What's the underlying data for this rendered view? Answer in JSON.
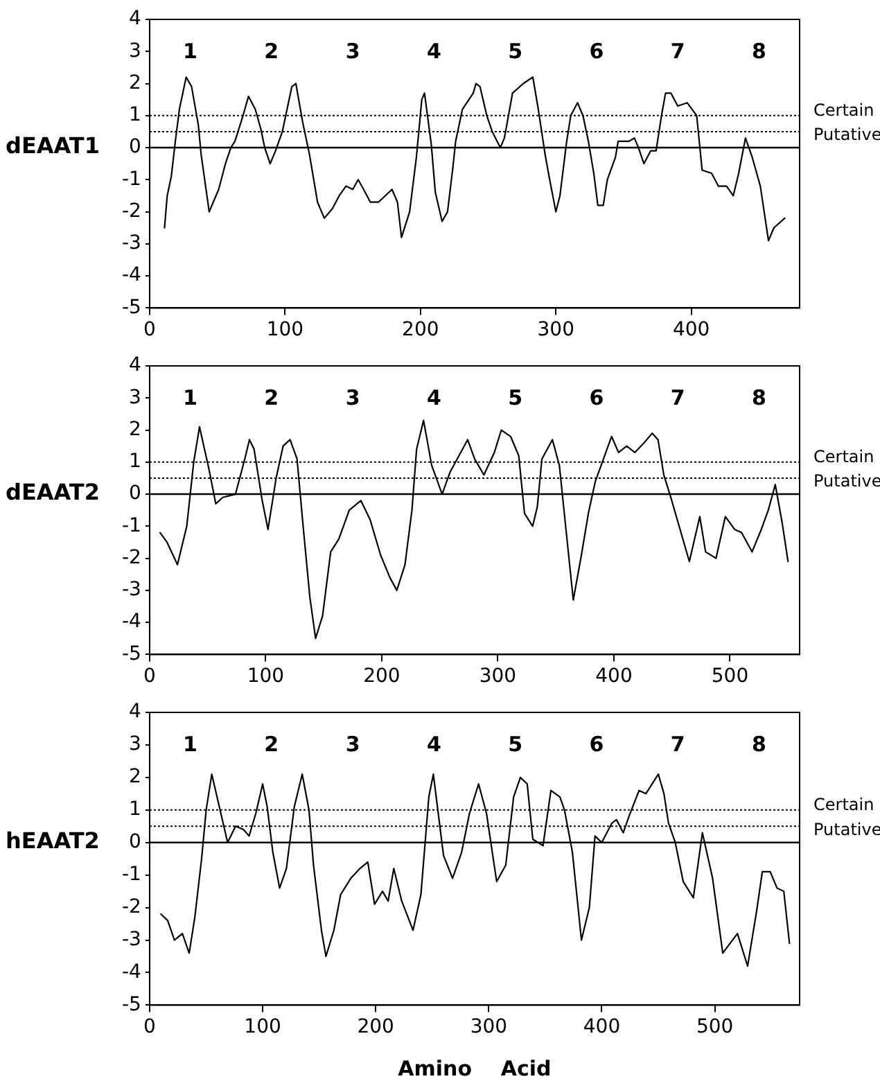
{
  "chart_data": [
    {
      "type": "line",
      "ylabel": "dEAAT1",
      "xlim": [
        0,
        480
      ],
      "xticks": [
        0,
        100,
        200,
        300,
        400
      ],
      "ylim": [
        -5,
        4
      ],
      "yticks": [
        -5,
        -4,
        -3,
        -2,
        -1,
        0,
        1,
        2,
        3,
        4
      ],
      "grid": false,
      "legend": false,
      "marker": "none",
      "line_style": "solid",
      "ref_lines": [
        {
          "axis": "y",
          "value": 1,
          "label": "Certain",
          "line_style": "dotted"
        },
        {
          "axis": "y",
          "value": 0.5,
          "label": "Putative",
          "line_style": "dotted"
        },
        {
          "axis": "y",
          "value": 0,
          "label": null,
          "line_style": "solid"
        }
      ],
      "annotations": [
        "1",
        "2",
        "3",
        "4",
        "5",
        "6",
        "7",
        "8"
      ],
      "series": [
        {
          "color": "#000000",
          "x": [
            11,
            13,
            16,
            19,
            22,
            27,
            31,
            36,
            38,
            44,
            47,
            51,
            56,
            60,
            63,
            69,
            73,
            78,
            82,
            85,
            89,
            93,
            98,
            101,
            105,
            108,
            113,
            118,
            124,
            129,
            135,
            140,
            145,
            150,
            154,
            158,
            163,
            169,
            174,
            179,
            183,
            186,
            192,
            197,
            201,
            203,
            208,
            211,
            216,
            220,
            224,
            226,
            231,
            239,
            241,
            244,
            249,
            253,
            259,
            262,
            268,
            276,
            283,
            287,
            292,
            295,
            300,
            303,
            308,
            311,
            316,
            320,
            324,
            328,
            331,
            335,
            338,
            344,
            346,
            351,
            354,
            358,
            361,
            365,
            370,
            374,
            378,
            381,
            385,
            390,
            397,
            404,
            408,
            415,
            420,
            426,
            431,
            435,
            440,
            445,
            451,
            457,
            461,
            469
          ],
          "values": [
            -2.5,
            -1.5,
            -0.9,
            0.2,
            1.2,
            2.2,
            1.9,
            0.7,
            -0.2,
            -2.0,
            -1.7,
            -1.3,
            -0.5,
            0.0,
            0.2,
            1.0,
            1.6,
            1.2,
            0.6,
            0.0,
            -0.5,
            -0.1,
            0.5,
            1.1,
            1.9,
            2.0,
            0.8,
            -0.2,
            -1.7,
            -2.2,
            -1.9,
            -1.5,
            -1.2,
            -1.3,
            -1.0,
            -1.3,
            -1.7,
            -1.7,
            -1.5,
            -1.3,
            -1.7,
            -2.8,
            -2.0,
            -0.3,
            1.5,
            1.7,
            0.1,
            -1.4,
            -2.3,
            -2.0,
            -0.6,
            0.2,
            1.2,
            1.7,
            2.0,
            1.9,
            1.0,
            0.5,
            0.0,
            0.3,
            1.7,
            2.0,
            2.2,
            1.2,
            -0.2,
            -0.9,
            -2.0,
            -1.5,
            0.2,
            1.0,
            1.4,
            1.0,
            0.2,
            -0.8,
            -1.8,
            -1.8,
            -1.0,
            -0.3,
            0.2,
            0.2,
            0.2,
            0.3,
            0.0,
            -0.5,
            -0.1,
            -0.1,
            1.0,
            1.7,
            1.7,
            1.3,
            1.4,
            1.0,
            -0.7,
            -0.8,
            -1.2,
            -1.2,
            -1.5,
            -0.8,
            0.3,
            -0.3,
            -1.2,
            -2.9,
            -2.5,
            -2.2
          ]
        }
      ]
    },
    {
      "type": "line",
      "ylabel": "dEAAT2",
      "xlim": [
        0,
        560
      ],
      "xticks": [
        0,
        100,
        200,
        300,
        400,
        500
      ],
      "ylim": [
        -5,
        4
      ],
      "yticks": [
        -5,
        -4,
        -3,
        -2,
        -1,
        0,
        1,
        2,
        3,
        4
      ],
      "grid": false,
      "legend": false,
      "marker": "none",
      "line_style": "solid",
      "ref_lines": [
        {
          "axis": "y",
          "value": 1,
          "label": "Certain",
          "line_style": "dotted"
        },
        {
          "axis": "y",
          "value": 0.5,
          "label": "Putative",
          "line_style": "dotted"
        },
        {
          "axis": "y",
          "value": 0,
          "label": null,
          "line_style": "solid"
        }
      ],
      "annotations": [
        "1",
        "2",
        "3",
        "4",
        "5",
        "6",
        "7",
        "8"
      ],
      "series": [
        {
          "color": "#000000",
          "x": [
            9,
            15,
            24,
            32,
            38,
            43,
            51,
            57,
            63,
            74,
            82,
            86,
            90,
            97,
            102,
            109,
            115,
            121,
            127,
            132,
            138,
            143,
            149,
            156,
            163,
            172,
            182,
            190,
            199,
            207,
            213,
            220,
            226,
            230,
            236,
            243,
            252,
            259,
            268,
            274,
            280,
            288,
            297,
            303,
            311,
            318,
            323,
            330,
            334,
            338,
            347,
            353,
            359,
            365,
            372,
            378,
            384,
            390,
            398,
            404,
            411,
            418,
            426,
            433,
            438,
            443,
            449,
            457,
            465,
            474,
            479,
            488,
            496,
            504,
            510,
            519,
            527,
            533,
            539,
            545,
            550
          ],
          "values": [
            -1.2,
            -1.5,
            -2.2,
            -1.0,
            1.0,
            2.1,
            0.8,
            -0.3,
            -0.1,
            0.0,
            1.1,
            1.7,
            1.4,
            -0.2,
            -1.1,
            0.5,
            1.5,
            1.7,
            1.1,
            -0.9,
            -3.2,
            -4.5,
            -3.8,
            -1.8,
            -1.4,
            -0.5,
            -0.2,
            -0.8,
            -1.9,
            -2.6,
            -3.0,
            -2.2,
            -0.5,
            1.4,
            2.3,
            0.9,
            0.0,
            0.7,
            1.3,
            1.7,
            1.1,
            0.6,
            1.3,
            2.0,
            1.8,
            1.2,
            -0.6,
            -1.0,
            -0.4,
            1.1,
            1.7,
            0.9,
            -1.2,
            -3.3,
            -1.9,
            -0.6,
            0.4,
            1.0,
            1.8,
            1.3,
            1.5,
            1.3,
            1.6,
            1.9,
            1.7,
            0.6,
            -0.1,
            -1.1,
            -2.1,
            -0.7,
            -1.8,
            -2.0,
            -0.7,
            -1.1,
            -1.2,
            -1.8,
            -1.1,
            -0.5,
            0.3,
            -0.9,
            -2.1
          ]
        }
      ]
    },
    {
      "type": "line",
      "ylabel": "hEAAT2",
      "xlabel": "Amino    Acid",
      "xlim": [
        0,
        575
      ],
      "xticks": [
        0,
        100,
        200,
        300,
        400,
        500
      ],
      "ylim": [
        -5,
        4
      ],
      "yticks": [
        -5,
        -4,
        -3,
        -2,
        -1,
        0,
        1,
        2,
        3,
        4
      ],
      "grid": false,
      "legend": false,
      "marker": "none",
      "line_style": "solid",
      "ref_lines": [
        {
          "axis": "y",
          "value": 1,
          "label": "Certain",
          "line_style": "dotted"
        },
        {
          "axis": "y",
          "value": 0.5,
          "label": "Putative",
          "line_style": "dotted"
        },
        {
          "axis": "y",
          "value": 0,
          "label": null,
          "line_style": "solid"
        }
      ],
      "annotations": [
        "1",
        "2",
        "3",
        "4",
        "5",
        "6",
        "7",
        "8"
      ],
      "series": [
        {
          "color": "#000000",
          "x": [
            10,
            16,
            22,
            29,
            35,
            40,
            46,
            50,
            55,
            61,
            69,
            76,
            83,
            88,
            94,
            100,
            104,
            109,
            115,
            121,
            128,
            135,
            141,
            145,
            152,
            156,
            163,
            169,
            178,
            186,
            193,
            199,
            206,
            211,
            216,
            223,
            233,
            240,
            247,
            251,
            260,
            268,
            276,
            283,
            291,
            298,
            307,
            315,
            322,
            328,
            334,
            339,
            348,
            355,
            363,
            367,
            374,
            382,
            389,
            394,
            400,
            409,
            413,
            419,
            424,
            433,
            439,
            450,
            455,
            459,
            465,
            472,
            481,
            489,
            498,
            507,
            520,
            529,
            537,
            542,
            549,
            555,
            561,
            566
          ],
          "values": [
            -2.2,
            -2.4,
            -3.0,
            -2.8,
            -3.4,
            -2.3,
            -0.5,
            1.0,
            2.1,
            1.2,
            0.0,
            0.5,
            0.4,
            0.2,
            0.9,
            1.8,
            1.1,
            -0.3,
            -1.4,
            -0.8,
            1.1,
            2.1,
            1.0,
            -0.7,
            -2.7,
            -3.5,
            -2.7,
            -1.6,
            -1.1,
            -0.8,
            -0.6,
            -1.9,
            -1.5,
            -1.8,
            -0.8,
            -1.8,
            -2.7,
            -1.6,
            1.4,
            2.1,
            -0.4,
            -1.1,
            -0.3,
            0.9,
            1.8,
            0.9,
            -1.2,
            -0.7,
            1.4,
            2.0,
            1.8,
            0.1,
            -0.1,
            1.6,
            1.4,
            1.0,
            -0.3,
            -3.0,
            -2.0,
            0.2,
            0.0,
            0.6,
            0.7,
            0.3,
            0.8,
            1.6,
            1.5,
            2.1,
            1.5,
            0.6,
            0.0,
            -1.2,
            -1.7,
            0.3,
            -1.1,
            -3.4,
            -2.8,
            -3.8,
            -2.1,
            -0.9,
            -0.9,
            -1.4,
            -1.5,
            -3.1
          ]
        }
      ]
    }
  ]
}
